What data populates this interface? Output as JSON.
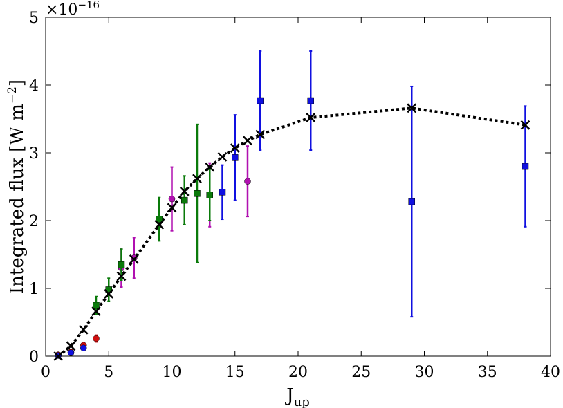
{
  "chart_data": {
    "type": "scatter",
    "xlabel": "J",
    "xlabel_sub": "up",
    "ylabel": "Integrated flux [W m",
    "ylabel_sup": "−2",
    "ylabel_end": "]",
    "exponent_label": "×10",
    "exponent_sup": "−16",
    "xlim": [
      0,
      40
    ],
    "ylim": [
      0,
      5
    ],
    "xticks": [
      0,
      5,
      10,
      15,
      20,
      25,
      30,
      35,
      40
    ],
    "yticks": [
      0,
      1,
      2,
      3,
      4,
      5
    ],
    "series": [
      {
        "marker": "circle",
        "color": "#d01010",
        "points": [
          {
            "x": 1,
            "y": 0.02,
            "err": 0.02
          },
          {
            "x": 2,
            "y": 0.06,
            "err": 0.02
          },
          {
            "x": 3,
            "y": 0.16,
            "err": 0.03
          },
          {
            "x": 4,
            "y": 0.26,
            "err": 0.05
          }
        ]
      },
      {
        "marker": "circle",
        "color": "#1010e0",
        "points": [
          {
            "x": 1,
            "y": 0.01,
            "err": 0.01
          },
          {
            "x": 2,
            "y": 0.05,
            "err": 0.02
          },
          {
            "x": 3,
            "y": 0.12,
            "err": 0.03
          }
        ]
      },
      {
        "marker": "circle",
        "color": "#b010b0",
        "points": [
          {
            "x": 6,
            "y": 1.3,
            "err": 0.28
          },
          {
            "x": 7,
            "y": 1.45,
            "err": 0.3
          },
          {
            "x": 10,
            "y": 2.32,
            "err": 0.47
          },
          {
            "x": 13,
            "y": 2.38,
            "err": 0.47
          },
          {
            "x": 16,
            "y": 2.58,
            "err": 0.52
          }
        ]
      },
      {
        "marker": "square",
        "color": "#0a7a0a",
        "points": [
          {
            "x": 4,
            "y": 0.75,
            "err": 0.13
          },
          {
            "x": 5,
            "y": 0.98,
            "err": 0.17
          },
          {
            "x": 6,
            "y": 1.35,
            "err": 0.23
          },
          {
            "x": 9,
            "y": 2.02,
            "err": 0.32
          },
          {
            "x": 11,
            "y": 2.3,
            "err": 0.36
          },
          {
            "x": 12,
            "y": 2.4,
            "err": 1.02
          },
          {
            "x": 13,
            "y": 2.38,
            "err": 0.38
          }
        ]
      },
      {
        "marker": "square",
        "color": "#1010e0",
        "points": [
          {
            "x": 14,
            "y": 2.42,
            "err": 0.4
          },
          {
            "x": 15,
            "y": 2.93,
            "err": 0.63
          },
          {
            "x": 17,
            "y": 3.77,
            "err": 0.73
          },
          {
            "x": 21,
            "y": 3.77,
            "err": 0.73
          },
          {
            "x": 29,
            "y": 2.28,
            "err": 1.7
          },
          {
            "x": 38,
            "y": 2.8,
            "err": 0.89
          }
        ]
      }
    ],
    "model": {
      "marker": "x",
      "color": "#000000",
      "line": "dotted",
      "points": [
        {
          "x": 1,
          "y": 0.0
        },
        {
          "x": 2,
          "y": 0.15
        },
        {
          "x": 3,
          "y": 0.39
        },
        {
          "x": 4,
          "y": 0.66
        },
        {
          "x": 5,
          "y": 0.92
        },
        {
          "x": 6,
          "y": 1.18
        },
        {
          "x": 7,
          "y": 1.43
        },
        {
          "x": 9,
          "y": 1.94
        },
        {
          "x": 10,
          "y": 2.19
        },
        {
          "x": 11,
          "y": 2.43
        },
        {
          "x": 12,
          "y": 2.62
        },
        {
          "x": 13,
          "y": 2.79
        },
        {
          "x": 14,
          "y": 2.94
        },
        {
          "x": 15,
          "y": 3.07
        },
        {
          "x": 16,
          "y": 3.18
        },
        {
          "x": 17,
          "y": 3.27
        },
        {
          "x": 21,
          "y": 3.52
        },
        {
          "x": 29,
          "y": 3.66
        },
        {
          "x": 38,
          "y": 3.41
        }
      ]
    }
  }
}
